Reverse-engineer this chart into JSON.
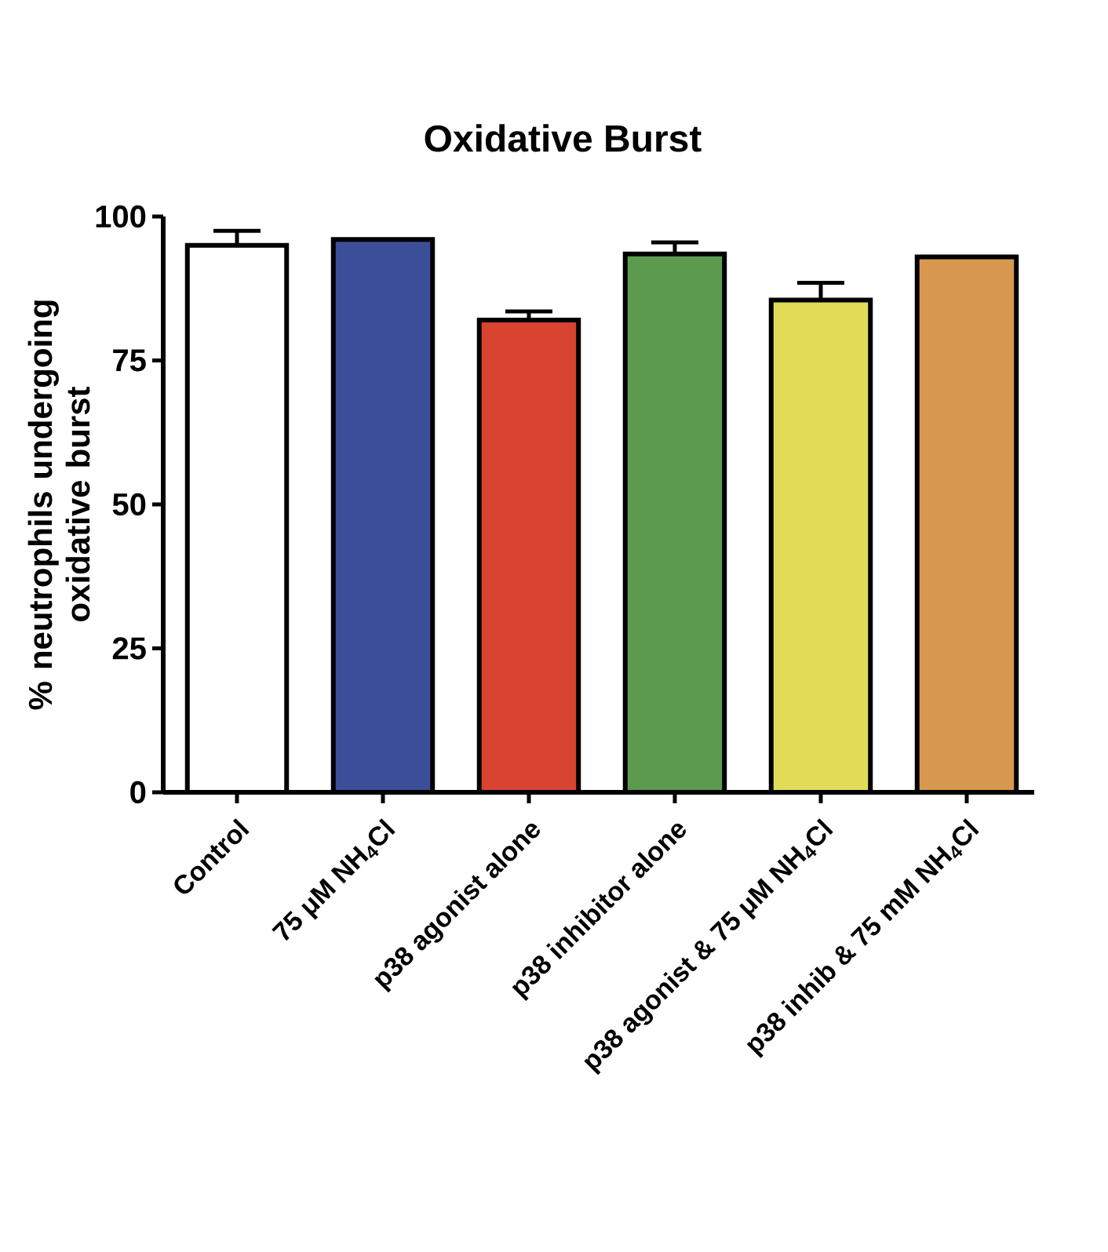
{
  "chart_data": {
    "type": "bar",
    "title": "Oxidative Burst",
    "ylabel": "% neutrophils undergoing oxidative burst",
    "categories": [
      "Control",
      "75 μM NH$_{4}$Cl",
      "p38 agonist alone",
      "p38 inhibitor alone",
      "p38 agonist & 75 μM NH$_{4}$Cl",
      "p38 inhib & 75 mM NH$_{4}$Cl"
    ],
    "values": [
      95,
      96,
      82,
      93.5,
      85.5,
      93
    ],
    "errors": [
      2.5,
      null,
      1.5,
      2,
      3,
      null
    ],
    "colors": [
      "#ffffff",
      "#3c4e98",
      "#d84430",
      "#5c9a50",
      "#e0dc58",
      "#d89850"
    ],
    "ylim": [
      0,
      100
    ],
    "yticks": [
      0,
      25,
      50,
      75,
      100
    ],
    "grid": false
  }
}
